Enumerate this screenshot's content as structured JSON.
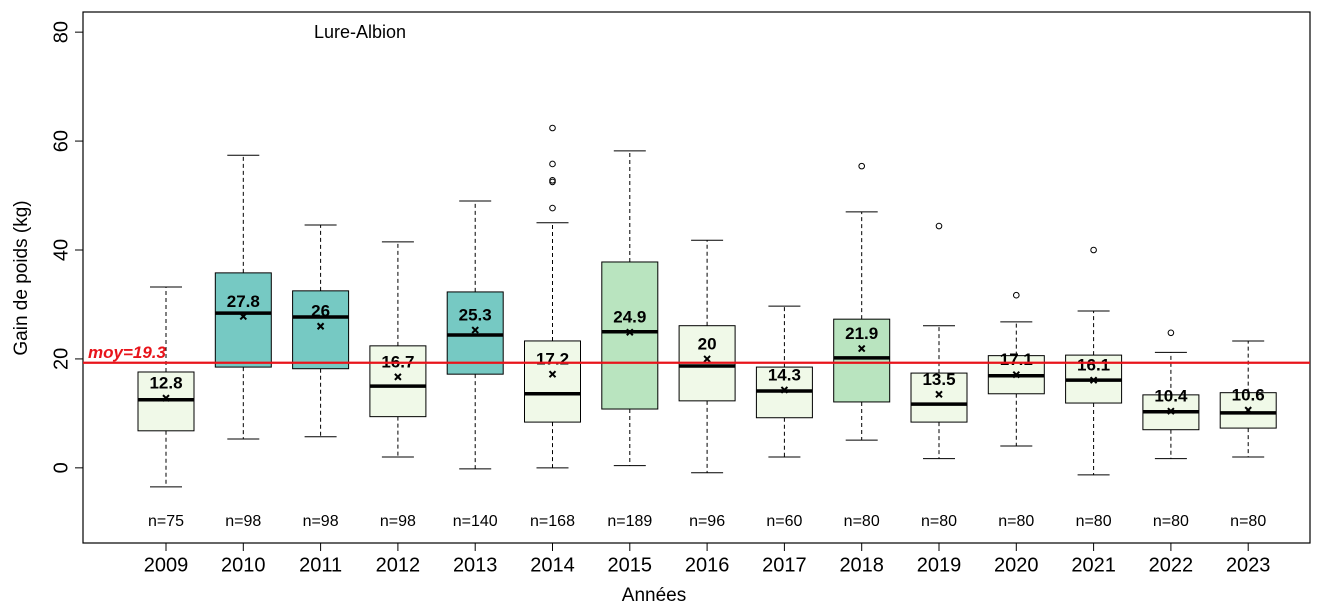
{
  "chart_data": {
    "type": "boxplot",
    "title": "Lure-Albion",
    "x_label": "Années",
    "y_label": "Gain de poids (kg)",
    "categories": [
      "2009",
      "2010",
      "2011",
      "2012",
      "2013",
      "2014",
      "2015",
      "2016",
      "2017",
      "2018",
      "2019",
      "2020",
      "2021",
      "2022",
      "2023"
    ],
    "whisker_low": [
      -3.5,
      5.3,
      5.7,
      2.0,
      -0.2,
      0.0,
      0.4,
      -0.9,
      2.0,
      5.1,
      1.7,
      4.0,
      -1.3,
      1.7,
      2.0
    ],
    "q1": [
      6.8,
      18.5,
      18.2,
      9.4,
      17.2,
      8.4,
      10.8,
      12.3,
      9.2,
      12.1,
      8.4,
      13.6,
      11.9,
      7.0,
      7.3
    ],
    "median": [
      12.5,
      28.4,
      27.7,
      15.0,
      24.4,
      13.6,
      25.0,
      18.7,
      14.1,
      20.2,
      11.7,
      16.9,
      16.1,
      10.3,
      10.1
    ],
    "q3": [
      17.6,
      35.8,
      32.5,
      22.4,
      32.3,
      23.3,
      37.8,
      26.1,
      18.5,
      27.3,
      17.4,
      20.6,
      20.7,
      13.4,
      13.8
    ],
    "whisker_high": [
      33.2,
      57.4,
      44.6,
      41.5,
      49.0,
      45.0,
      58.2,
      41.8,
      29.7,
      47.0,
      26.1,
      26.8,
      28.8,
      21.2,
      23.3
    ],
    "mean": [
      12.8,
      27.8,
      26,
      16.7,
      25.3,
      17.2,
      24.9,
      20,
      14.3,
      21.9,
      13.5,
      17.1,
      16.1,
      10.4,
      10.6
    ],
    "outliers": [
      [],
      [],
      [],
      [],
      [],
      [
        47.7,
        52.5,
        52.8,
        55.8,
        62.4
      ],
      [],
      [],
      [],
      [
        55.4
      ],
      [
        44.4
      ],
      [
        31.7
      ],
      [
        40.0
      ],
      [
        24.8
      ],
      []
    ],
    "n_labels": [
      "n=75",
      "n=98",
      "n=98",
      "n=98",
      "n=140",
      "n=168",
      "n=189",
      "n=96",
      "n=60",
      "n=80",
      "n=80",
      "n=80",
      "n=80",
      "n=80",
      "n=80"
    ],
    "box_colors": [
      "#f0f9e8",
      "#76c9c3",
      "#76c9c3",
      "#f0f9e8",
      "#76c9c3",
      "#f0f9e8",
      "#b9e4bf",
      "#f0f9e8",
      "#f0f9e8",
      "#b9e4bf",
      "#f0f9e8",
      "#f0f9e8",
      "#f0f9e8",
      "#f0f9e8",
      "#f0f9e8"
    ],
    "overall_mean": 19.3,
    "overall_mean_label": "moy=19.3",
    "overall_mean_color": "#e8141b",
    "ylim": [
      -13.8,
      83.7
    ],
    "yticks": [
      0,
      20,
      40,
      60,
      80
    ]
  }
}
